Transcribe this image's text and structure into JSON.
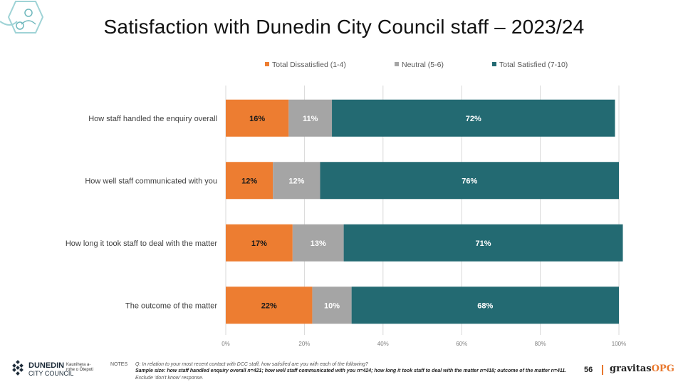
{
  "title": "Satisfaction with Dunedin City Council staff – 2023/24",
  "colors": {
    "dissatisfied": "#ed7d31",
    "neutral": "#a5a5a5",
    "satisfied": "#236a72",
    "grid": "#d9d9d9",
    "axis_text": "#7f7f7f",
    "brand_accent": "#e8782e"
  },
  "chart_data": {
    "type": "bar",
    "orientation": "horizontal",
    "stacked": true,
    "categories": [
      "How staff handled the enquiry overall",
      "How well staff communicated with you",
      "How long it took staff to deal with the matter",
      "The outcome of the matter"
    ],
    "series": [
      {
        "name": "Total Dissatisfied (1-4)",
        "values": [
          16,
          12,
          17,
          22
        ],
        "labels": [
          "16%",
          "12%",
          "17%",
          "22%"
        ]
      },
      {
        "name": "Neutral (5-6)",
        "values": [
          11,
          12,
          13,
          10
        ],
        "labels": [
          "11%",
          "12%",
          "13%",
          "10%"
        ]
      },
      {
        "name": "Total Satisfied (7-10)",
        "values": [
          72,
          76,
          71,
          68
        ],
        "labels": [
          "72%",
          "76%",
          "71%",
          "68%"
        ]
      }
    ],
    "xlim": [
      0,
      100
    ],
    "xticks": [
      "0%",
      "20%",
      "40%",
      "60%",
      "80%",
      "100%"
    ],
    "legend_position": "top",
    "grid": true
  },
  "footer": {
    "logo_name": "DUNEDIN",
    "logo_sub": "CITY COUNCIL",
    "logo_maori": "Kaunihera a-rohe o Ōtepoti",
    "notes_label": "NOTES",
    "notes_question": "Q: In relation to your most recent contact with DCC staff, how satisfied are you with each of the following?",
    "notes_sample": "Sample size: how staff handled enquiry overall n=421; how well staff communicated with you n=424; how long it took staff to deal with the matter n=418; outcome of the matter n=411.",
    "notes_exclude": "Exclude ‘don’t know’ response.",
    "page_number": "56",
    "brand_main": "gravitas",
    "brand_accent": "OPG",
    "logo_icon": "dcc-diamond-grid-icon",
    "corner_icon": "hexagon-people-icon"
  }
}
